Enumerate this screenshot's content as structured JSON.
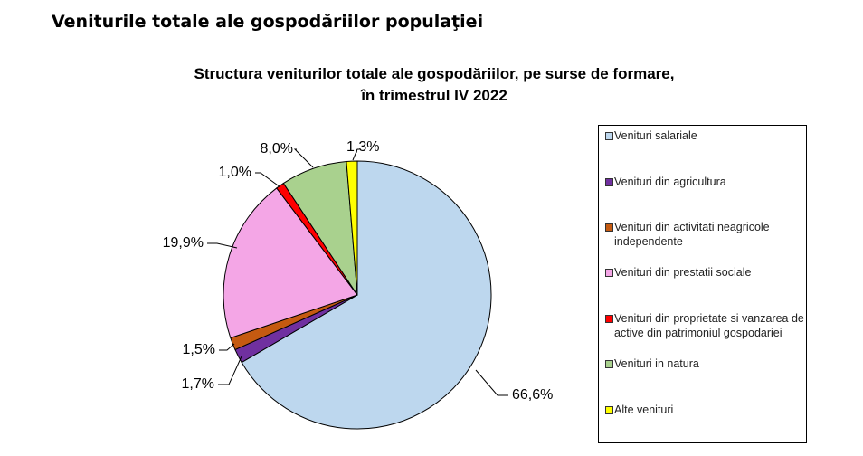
{
  "header": {
    "section_title": "Veniturile totale ale gospodăriilor populaţiei"
  },
  "chart_data": {
    "type": "pie",
    "title_line1": "Structura veniturilor totale ale gospodăriilor, pe surse de formare,",
    "title_line2": "în trimestrul IV 2022",
    "legend_position": "right",
    "slices": [
      {
        "name": "Venituri salariale",
        "value": 66.6,
        "label": "66,6%",
        "color": "#bdd7ee"
      },
      {
        "name": "Venituri din agricultura",
        "value": 1.7,
        "label": "1,7%",
        "color": "#7030a0"
      },
      {
        "name": "Venituri din activitati neagricole independente",
        "value": 1.5,
        "label": "1,5%",
        "color": "#c55a11"
      },
      {
        "name": "Venituri din prestatii sociale",
        "value": 19.9,
        "label": "19,9%",
        "color": "#f4a6e6"
      },
      {
        "name": "Venituri din proprietate si vanzarea de active din patrimoniul gospodariei",
        "value": 1.0,
        "label": "1,0%",
        "color": "#ff0000"
      },
      {
        "name": "Venituri in natura",
        "value": 8.0,
        "label": "8,0%",
        "color": "#a9d18e"
      },
      {
        "name": "Alte venituri",
        "value": 1.3,
        "label": "1,3%",
        "color": "#ffff00"
      }
    ]
  }
}
